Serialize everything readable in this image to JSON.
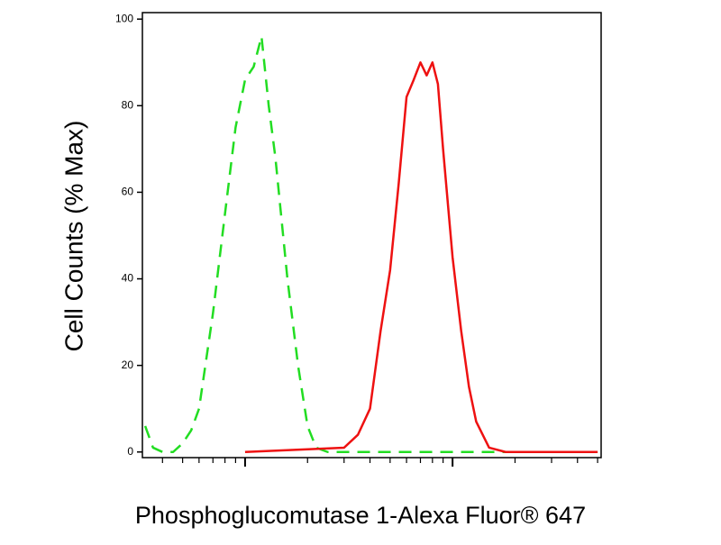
{
  "chart_data": {
    "type": "line",
    "xlabel": "Phosphoglucomutase 1-Alexa Fluor® 647",
    "ylabel": "Cell Counts (% Max)",
    "xscale": "log",
    "xlim": [
      32,
      5200
    ],
    "xticks": [
      100,
      1000
    ],
    "xminorticks": [
      40,
      50,
      60,
      70,
      80,
      90,
      200,
      300,
      400,
      500,
      600,
      700,
      800,
      900,
      2000,
      3000,
      4000,
      5000
    ],
    "ylim": [
      -1.3,
      101.5
    ],
    "yticks": [
      0,
      20,
      40,
      60,
      80,
      100
    ],
    "series": [
      {
        "color": "#22dd22",
        "dash": true,
        "x": [
          33,
          36,
          40,
          45,
          50,
          55,
          60,
          70,
          80,
          90,
          100,
          110,
          120,
          130,
          140,
          160,
          180,
          200,
          220,
          250,
          300,
          5000
        ],
        "values": [
          6,
          1,
          0,
          0,
          2,
          5,
          10,
          32,
          55,
          75,
          86,
          89,
          96,
          80,
          68,
          40,
          20,
          6,
          1,
          0,
          0,
          0
        ]
      },
      {
        "color": "#ee1111",
        "dash": false,
        "x": [
          100,
          300,
          350,
          400,
          450,
          500,
          550,
          600,
          650,
          700,
          750,
          800,
          850,
          900,
          1000,
          1100,
          1200,
          1300,
          1500,
          1800,
          5000
        ],
        "values": [
          0,
          1,
          4,
          10,
          28,
          42,
          62,
          82,
          86,
          90,
          87,
          90,
          85,
          70,
          45,
          28,
          15,
          7,
          1,
          0,
          0
        ]
      }
    ]
  }
}
